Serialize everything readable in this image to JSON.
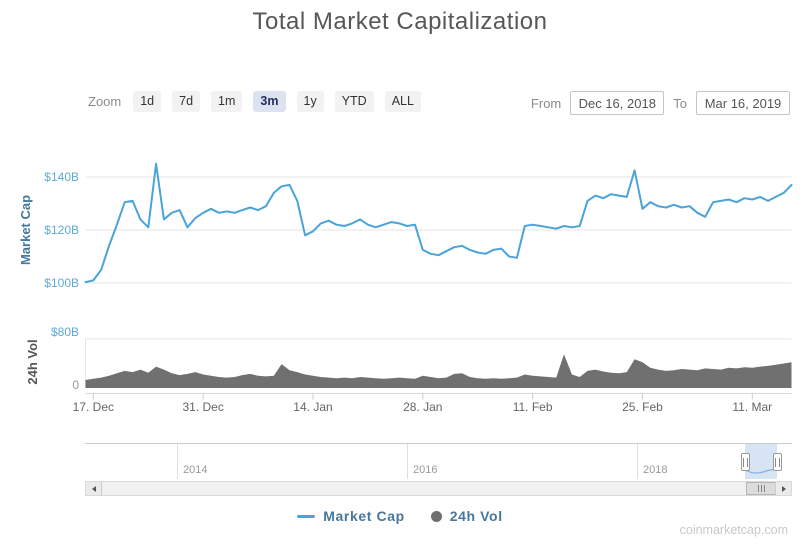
{
  "title": "Total Market Capitalization",
  "toolbar": {
    "zoom_label": "Zoom",
    "buttons": [
      {
        "label": "1d",
        "selected": false
      },
      {
        "label": "7d",
        "selected": false
      },
      {
        "label": "1m",
        "selected": false
      },
      {
        "label": "3m",
        "selected": true
      },
      {
        "label": "1y",
        "selected": false
      },
      {
        "label": "YTD",
        "selected": false
      },
      {
        "label": "ALL",
        "selected": false
      }
    ]
  },
  "range": {
    "from_label": "From",
    "from_value": "Dec 16, 2018",
    "to_label": "To",
    "to_value": "Mar 16, 2019"
  },
  "legend": {
    "items": [
      {
        "label": "Market Cap",
        "marker": "line",
        "color": "#4aa3d9"
      },
      {
        "label": "24h Vol",
        "marker": "circle",
        "color": "#6f6f6f"
      }
    ]
  },
  "navigator": {
    "years": [
      "2014",
      "2016",
      "2018"
    ]
  },
  "watermark": "coinmarketcap.com",
  "chart_data": [
    {
      "type": "line",
      "name": "Market Cap",
      "color": "#4aa3d9",
      "x_start": "Dec 16, 2018",
      "x_end": "Mar 16, 2019",
      "x_unit": "day",
      "ylim": [
        97,
        150
      ],
      "yaxis": {
        "title": "Market Cap",
        "title_color": "#46789e",
        "label_color": "#5faad5",
        "ticks": [
          {
            "v": 100,
            "label": "$100B"
          },
          {
            "v": 120,
            "label": "$120B"
          },
          {
            "v": 140,
            "label": "$140B"
          }
        ]
      },
      "xticks": [
        {
          "day": 1,
          "label": "17. Dec"
        },
        {
          "day": 15,
          "label": "31. Dec"
        },
        {
          "day": 29,
          "label": "14. Jan"
        },
        {
          "day": 43,
          "label": "28. Jan"
        },
        {
          "day": 57,
          "label": "11. Feb"
        },
        {
          "day": 71,
          "label": "25. Feb"
        },
        {
          "day": 85,
          "label": "11. Mar"
        }
      ],
      "values": [
        100.3,
        101.0,
        105.0,
        114.0,
        122.0,
        130.5,
        131.0,
        124.0,
        121.0,
        145.0,
        124.0,
        126.5,
        127.5,
        121.0,
        124.5,
        126.5,
        128.0,
        126.5,
        127.0,
        126.5,
        127.5,
        128.5,
        127.5,
        129.0,
        134.0,
        136.5,
        137.0,
        131.0,
        118.0,
        119.5,
        122.5,
        123.5,
        122.0,
        121.5,
        122.5,
        124.0,
        122.0,
        121.0,
        122.0,
        123.0,
        122.5,
        121.5,
        122.0,
        112.5,
        111.0,
        110.5,
        112.0,
        113.5,
        114.0,
        112.5,
        111.5,
        111.0,
        112.5,
        113.0,
        110.0,
        109.5,
        121.5,
        122.0,
        121.5,
        121.0,
        120.5,
        121.5,
        121.0,
        121.5,
        131.0,
        133.0,
        132.0,
        133.5,
        133.0,
        132.5,
        142.5,
        128.0,
        130.5,
        129.0,
        128.5,
        129.5,
        128.5,
        129.0,
        126.5,
        125.0,
        130.5,
        131.0,
        131.5,
        130.5,
        132.0,
        131.5,
        132.5,
        131.0,
        132.5,
        134.0,
        137.0
      ]
    },
    {
      "type": "area",
      "name": "24h Vol",
      "color": "#707070",
      "ylim": [
        0,
        80
      ],
      "yaxis": {
        "title": "24h Vol",
        "title_color": "#555555",
        "ticks": [
          {
            "v": 80,
            "label": "$80B",
            "color": "#5faad5"
          },
          {
            "v": 0,
            "label": "0",
            "color": "#999999"
          }
        ]
      },
      "values": [
        13,
        15,
        17,
        20,
        24,
        28,
        26,
        30,
        25,
        35,
        30,
        24,
        21,
        23,
        26,
        22,
        20,
        18,
        17,
        18,
        21,
        23,
        20,
        19,
        20,
        39,
        29,
        26,
        22,
        20,
        18,
        17,
        16,
        17,
        16,
        18,
        17,
        16,
        15,
        16,
        17,
        16,
        15,
        20,
        18,
        16,
        17,
        23,
        24,
        18,
        16,
        15,
        16,
        15,
        16,
        17,
        22,
        20,
        19,
        18,
        17,
        55,
        22,
        18,
        28,
        30,
        27,
        25,
        24,
        26,
        47,
        42,
        33,
        30,
        28,
        29,
        31,
        30,
        29,
        32,
        31,
        30,
        33,
        32,
        34,
        33,
        35,
        36,
        38,
        40,
        42
      ]
    }
  ]
}
